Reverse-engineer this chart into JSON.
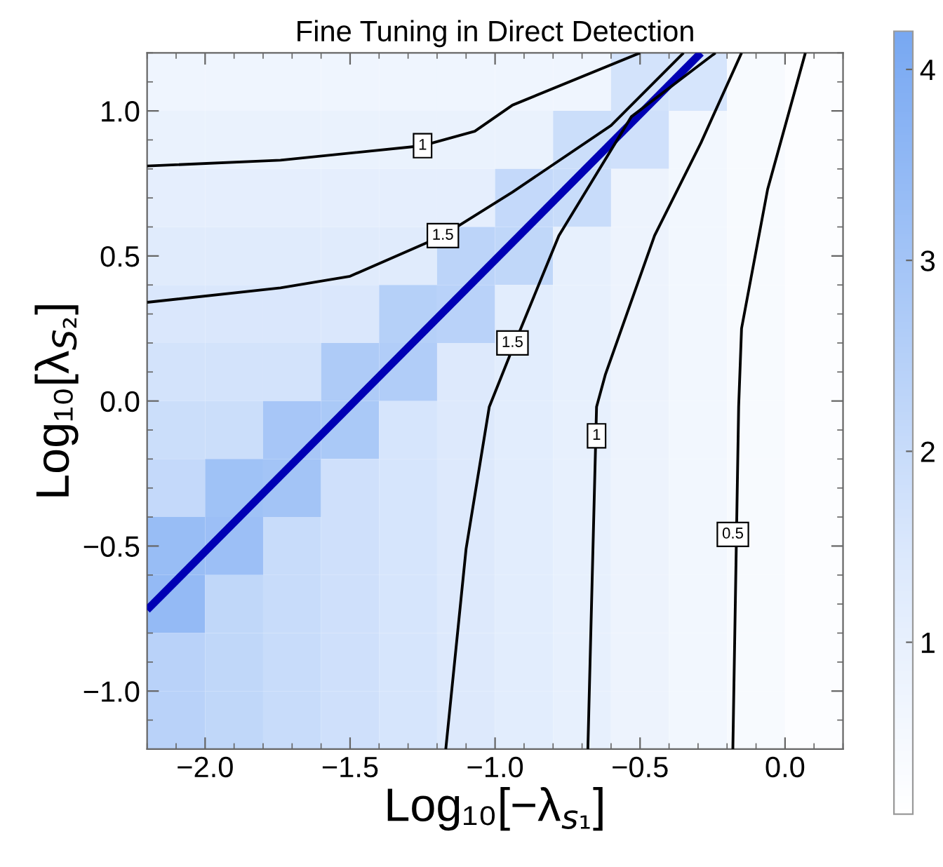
{
  "chart_data": {
    "type": "heatmap",
    "title": "Fine Tuning in Direct Detection",
    "xlabel": "Log₁₀[−λ$_{s₁}$]",
    "ylabel": "Log₁₀[λ$_{S₂}$]",
    "xlim": [
      -2.2,
      0.2
    ],
    "ylim": [
      -1.2,
      1.2
    ],
    "xticks": [
      {
        "value": -2.0,
        "label": "−2.0"
      },
      {
        "value": -1.5,
        "label": "−1.5"
      },
      {
        "value": -1.0,
        "label": "−1.0"
      },
      {
        "value": -0.5,
        "label": "−0.5"
      },
      {
        "value": 0.0,
        "label": "0.0"
      }
    ],
    "yticks": [
      {
        "value": -1.0,
        "label": "−1.0"
      },
      {
        "value": -0.5,
        "label": "−0.5"
      },
      {
        "value": 0.0,
        "label": "0.0"
      },
      {
        "value": 0.5,
        "label": "0.5"
      },
      {
        "value": 1.0,
        "label": "1.0"
      }
    ],
    "clim": [
      0.1,
      4.2
    ],
    "cticks": [
      1,
      2,
      3,
      4
    ],
    "cells": [
      [
        0.7,
        0.7,
        0.7,
        0.7,
        0.7,
        0.7,
        0.7,
        0.7,
        1.7,
        1.6,
        0.4,
        0.2
      ],
      [
        0.9,
        0.9,
        0.9,
        0.9,
        0.9,
        0.9,
        0.9,
        1.9,
        1.8,
        0.6,
        0.4,
        0.2
      ],
      [
        1.1,
        1.1,
        1.1,
        1.1,
        1.1,
        1.1,
        2.1,
        2.0,
        0.8,
        0.6,
        0.4,
        0.2
      ],
      [
        1.3,
        1.3,
        1.3,
        1.3,
        1.3,
        2.3,
        2.2,
        1.0,
        0.8,
        0.6,
        0.4,
        0.2
      ],
      [
        1.5,
        1.5,
        1.5,
        1.5,
        2.5,
        2.4,
        1.2,
        1.0,
        0.8,
        0.6,
        0.4,
        0.2
      ],
      [
        1.7,
        1.7,
        1.7,
        2.7,
        2.6,
        1.4,
        1.2,
        1.0,
        0.8,
        0.6,
        0.4,
        0.2
      ],
      [
        1.9,
        1.9,
        2.9,
        2.8,
        1.6,
        1.4,
        1.2,
        1.0,
        0.8,
        0.6,
        0.4,
        0.2
      ],
      [
        2.1,
        3.1,
        3.0,
        1.8,
        1.6,
        1.4,
        1.2,
        1.0,
        0.8,
        0.6,
        0.4,
        0.2
      ],
      [
        3.3,
        3.2,
        2.0,
        1.8,
        1.6,
        1.4,
        1.2,
        1.0,
        0.8,
        0.6,
        0.4,
        0.2
      ],
      [
        3.4,
        2.2,
        2.0,
        1.8,
        1.6,
        1.4,
        1.2,
        1.0,
        0.8,
        0.6,
        0.4,
        0.2
      ],
      [
        2.4,
        2.2,
        2.0,
        1.8,
        1.6,
        1.4,
        1.2,
        1.0,
        0.8,
        0.6,
        0.4,
        0.2
      ],
      [
        2.4,
        2.2,
        2.0,
        1.8,
        1.6,
        1.4,
        1.2,
        1.0,
        0.8,
        0.6,
        0.4,
        0.2
      ]
    ],
    "series": [
      {
        "type": "line",
        "color": "#000000",
        "x": [
          -2.2,
          -1.74,
          -1.25,
          -1.07,
          -0.94,
          -0.5
        ],
        "values": [
          0.81,
          0.83,
          0.88,
          0.93,
          1.02,
          1.2
        ]
      },
      {
        "type": "line",
        "color": "#000000",
        "x": [
          -2.2,
          -1.74,
          -1.5,
          -1.18,
          -0.94,
          -0.6,
          -0.35
        ],
        "values": [
          0.34,
          0.39,
          0.43,
          0.57,
          0.72,
          0.95,
          1.2
        ]
      },
      {
        "type": "line",
        "color": "#0000b4",
        "x": [
          -2.2,
          -0.29
        ],
        "values": [
          -0.72,
          1.2
        ]
      },
      {
        "type": "line",
        "color": "#000000",
        "x": [
          -1.17,
          -1.1,
          -1.02,
          -0.94,
          -0.78,
          -0.53,
          -0.24
        ],
        "values": [
          -1.2,
          -0.51,
          -0.02,
          0.18,
          0.57,
          0.98,
          1.2
        ]
      },
      {
        "type": "line",
        "color": "#000000",
        "x": [
          -0.68,
          -0.65,
          -0.62,
          -0.45,
          -0.29,
          -0.15
        ],
        "values": [
          -1.2,
          -0.02,
          0.09,
          0.57,
          0.89,
          1.2
        ]
      },
      {
        "type": "line",
        "color": "#000000",
        "x": [
          -0.18,
          -0.16,
          -0.15,
          -0.06,
          0.07
        ],
        "values": [
          -1.2,
          -0.02,
          0.25,
          0.73,
          1.2
        ]
      }
    ],
    "annotations": [
      {
        "text": "1",
        "x": -1.25,
        "y": 0.88
      },
      {
        "text": "1.5",
        "x": -1.18,
        "y": 0.57
      },
      {
        "text": "1.5",
        "x": -0.94,
        "y": 0.2
      },
      {
        "text": "1",
        "x": -0.65,
        "y": -0.12
      },
      {
        "text": "0.5",
        "x": -0.18,
        "y": -0.46
      }
    ]
  }
}
